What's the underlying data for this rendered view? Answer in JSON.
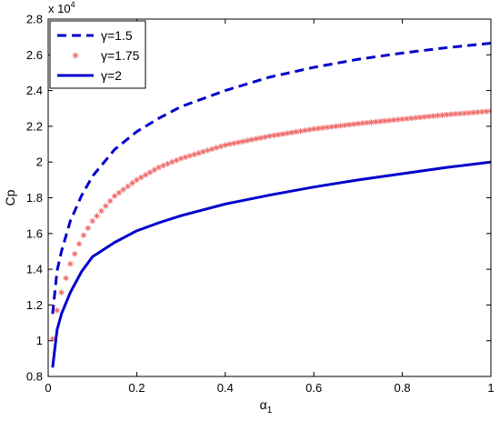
{
  "chart_data": {
    "type": "line",
    "xlabel": "α1",
    "ylabel": "Cp",
    "y_multiplier": "x 10^4",
    "xlim": [
      0,
      1
    ],
    "ylim": [
      8000,
      28000
    ],
    "x_ticks": [
      0,
      0.2,
      0.4,
      0.6,
      0.8,
      1
    ],
    "x_tick_labels": [
      "0",
      "0.2",
      "0.4",
      "0.6",
      "0.8",
      "1"
    ],
    "y_ticks": [
      8000,
      10000,
      12000,
      14000,
      16000,
      18000,
      20000,
      22000,
      24000,
      26000,
      28000
    ],
    "y_tick_labels": [
      "0.8",
      "1",
      "1.2",
      "1.4",
      "1.6",
      "1.8",
      "2",
      "2.2",
      "2.4",
      "2.6",
      "2.8"
    ],
    "grid": false,
    "legend_position": "top-left",
    "series": [
      {
        "name": "γ=1.5",
        "style": "dashed",
        "color": "#0000cc",
        "x": [
          0.01,
          0.02,
          0.03,
          0.05,
          0.075,
          0.1,
          0.15,
          0.2,
          0.25,
          0.3,
          0.4,
          0.5,
          0.6,
          0.7,
          0.8,
          0.9,
          1.0
        ],
        "y": [
          11500,
          13900,
          15000,
          16700,
          18100,
          19200,
          20700,
          21700,
          22450,
          23100,
          24000,
          24750,
          25300,
          25750,
          26100,
          26400,
          26650
        ]
      },
      {
        "name": "γ=1.75",
        "style": "star-markers",
        "color": "#ee6a6a",
        "x": [
          0.01,
          0.02,
          0.03,
          0.05,
          0.075,
          0.1,
          0.15,
          0.2,
          0.25,
          0.3,
          0.4,
          0.5,
          0.6,
          0.7,
          0.8,
          0.9,
          1.0
        ],
        "y": [
          10100,
          11700,
          12700,
          14300,
          15700,
          16700,
          18100,
          19000,
          19700,
          20200,
          20950,
          21450,
          21850,
          22150,
          22400,
          22650,
          22850
        ]
      },
      {
        "name": "γ=2",
        "style": "solid",
        "color": "#0000cc",
        "x": [
          0.01,
          0.02,
          0.03,
          0.05,
          0.075,
          0.1,
          0.15,
          0.2,
          0.25,
          0.3,
          0.4,
          0.5,
          0.6,
          0.7,
          0.8,
          0.9,
          1.0
        ],
        "y": [
          8500,
          10600,
          11500,
          12700,
          13850,
          14700,
          15500,
          16150,
          16600,
          17000,
          17650,
          18150,
          18600,
          19000,
          19350,
          19700,
          20000
        ]
      }
    ]
  }
}
